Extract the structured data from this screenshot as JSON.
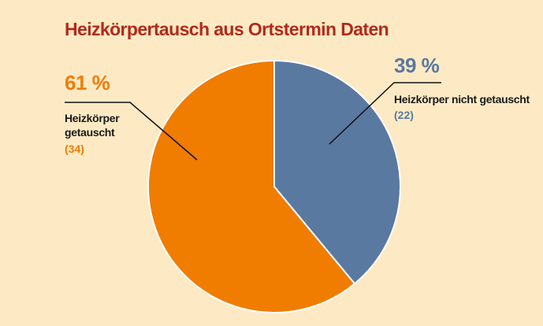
{
  "chart_data": {
    "type": "pie",
    "title": "Heizkörpertausch aus Ortstermin Daten",
    "categories": [
      "Heizkörper nicht getauscht",
      "Heizkörper getauscht"
    ],
    "values": [
      39,
      61
    ],
    "value_labels": [
      "39 %",
      "61 %"
    ],
    "counts": [
      22,
      34
    ],
    "count_labels": [
      "(22)",
      "(34)"
    ],
    "colors": [
      "#5a79a0",
      "#f07c00"
    ]
  }
}
